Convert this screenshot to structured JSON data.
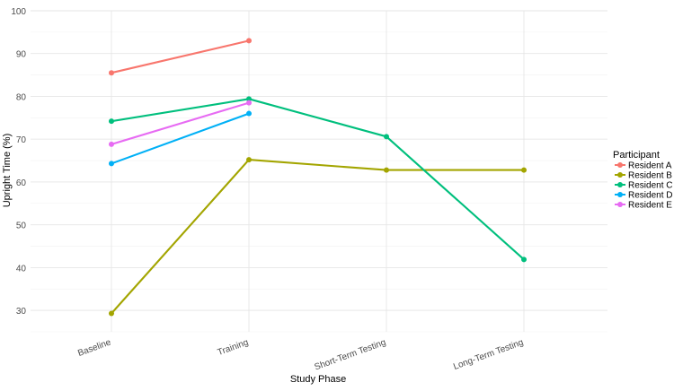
{
  "chart_data": {
    "type": "line",
    "title": "",
    "xlabel": "Study Phase",
    "ylabel": "Upright Time (%)",
    "categories": [
      "Baseline",
      "Training",
      "Short-Term Testing",
      "Long-Term Testing"
    ],
    "ylim": [
      25,
      100
    ],
    "yticks": [
      30,
      40,
      50,
      60,
      70,
      80,
      90,
      100
    ],
    "grid": true,
    "legend": {
      "title": "Participant",
      "placement": "right"
    },
    "series": [
      {
        "name": "Resident A",
        "color": "#F8766D",
        "values": [
          85.5,
          93,
          null,
          null
        ]
      },
      {
        "name": "Resident B",
        "color": "#A3A500",
        "values": [
          29.3,
          65.2,
          62.8,
          62.8
        ]
      },
      {
        "name": "Resident C",
        "color": "#00BF7D",
        "values": [
          74.2,
          79.4,
          70.6,
          41.9
        ]
      },
      {
        "name": "Resident D",
        "color": "#00B0F6",
        "values": [
          64.3,
          76,
          null,
          null
        ]
      },
      {
        "name": "Resident E",
        "color": "#E76BF3",
        "values": [
          68.8,
          78.5,
          null,
          null
        ]
      }
    ]
  }
}
